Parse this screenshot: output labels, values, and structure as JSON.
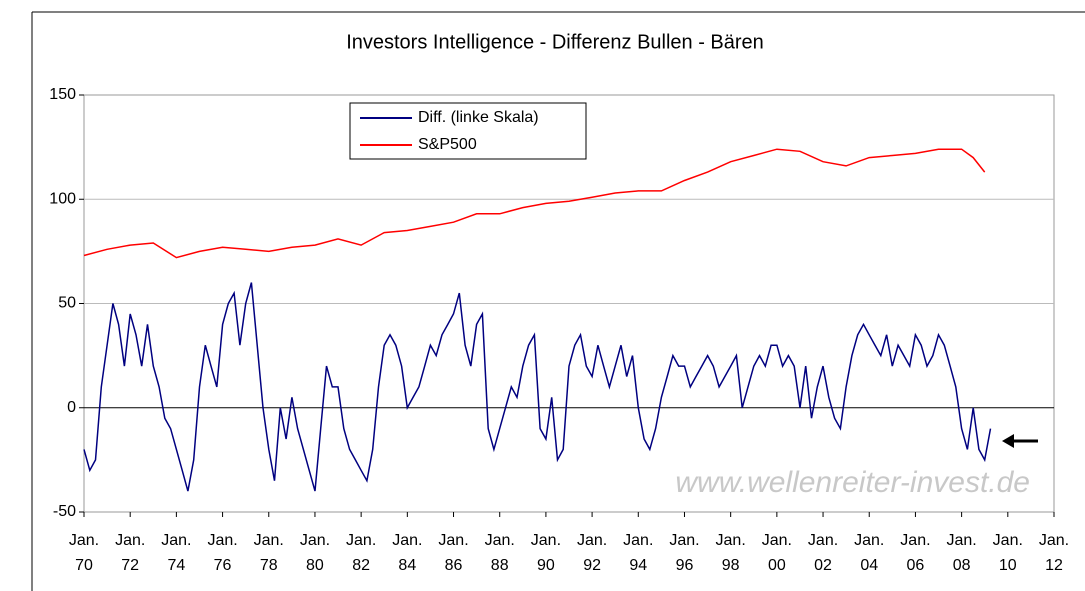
{
  "chart_data": {
    "type": "line",
    "title": "Investors Intelligence - Differenz Bullen - Bären",
    "watermark": "www.wellenreiter-invest.de",
    "xlim": [
      1970,
      2012
    ],
    "xticks": [
      {
        "value": 1970,
        "label": "Jan. 70"
      },
      {
        "value": 1972,
        "label": "Jan. 72"
      },
      {
        "value": 1974,
        "label": "Jan. 74"
      },
      {
        "value": 1976,
        "label": "Jan. 76"
      },
      {
        "value": 1978,
        "label": "Jan. 78"
      },
      {
        "value": 1980,
        "label": "Jan. 80"
      },
      {
        "value": 1982,
        "label": "Jan. 82"
      },
      {
        "value": 1984,
        "label": "Jan. 84"
      },
      {
        "value": 1986,
        "label": "Jan. 86"
      },
      {
        "value": 1988,
        "label": "Jan. 88"
      },
      {
        "value": 1990,
        "label": "Jan. 90"
      },
      {
        "value": 1992,
        "label": "Jan. 92"
      },
      {
        "value": 1994,
        "label": "Jan. 94"
      },
      {
        "value": 1996,
        "label": "Jan. 96"
      },
      {
        "value": 1998,
        "label": "Jan. 98"
      },
      {
        "value": 2000,
        "label": "Jan. 00"
      },
      {
        "value": 2002,
        "label": "Jan. 02"
      },
      {
        "value": 2004,
        "label": "Jan. 04"
      },
      {
        "value": 2006,
        "label": "Jan. 06"
      },
      {
        "value": 2008,
        "label": "Jan. 08"
      },
      {
        "value": 2010,
        "label": "Jan. 10"
      },
      {
        "value": 2012,
        "label": "Jan. 12"
      }
    ],
    "ylim": [
      -50,
      150
    ],
    "yticks": [
      -50,
      0,
      50,
      100,
      150
    ],
    "grid": true,
    "series": [
      {
        "name": "Diff. (linke Skala)",
        "color": "#000080",
        "x": [
          1970,
          1970.25,
          1970.5,
          1970.75,
          1971,
          1971.25,
          1971.5,
          1971.75,
          1972,
          1972.25,
          1972.5,
          1972.75,
          1973,
          1973.25,
          1973.5,
          1973.75,
          1974,
          1974.25,
          1974.5,
          1974.75,
          1975,
          1975.25,
          1975.5,
          1975.75,
          1976,
          1976.25,
          1976.5,
          1976.75,
          1977,
          1977.25,
          1977.5,
          1977.75,
          1978,
          1978.25,
          1978.5,
          1978.75,
          1979,
          1979.25,
          1979.5,
          1979.75,
          1980,
          1980.25,
          1980.5,
          1980.75,
          1981,
          1981.25,
          1981.5,
          1981.75,
          1982,
          1982.25,
          1982.5,
          1982.75,
          1983,
          1983.25,
          1983.5,
          1983.75,
          1984,
          1984.25,
          1984.5,
          1984.75,
          1985,
          1985.25,
          1985.5,
          1985.75,
          1986,
          1986.25,
          1986.5,
          1986.75,
          1987,
          1987.25,
          1987.5,
          1987.75,
          1988,
          1988.25,
          1988.5,
          1988.75,
          1989,
          1989.25,
          1989.5,
          1989.75,
          1990,
          1990.25,
          1990.5,
          1990.75,
          1991,
          1991.25,
          1991.5,
          1991.75,
          1992,
          1992.25,
          1992.5,
          1992.75,
          1993,
          1993.25,
          1993.5,
          1993.75,
          1994,
          1994.25,
          1994.5,
          1994.75,
          1995,
          1995.25,
          1995.5,
          1995.75,
          1996,
          1996.25,
          1996.5,
          1996.75,
          1997,
          1997.25,
          1997.5,
          1997.75,
          1998,
          1998.25,
          1998.5,
          1998.75,
          1999,
          1999.25,
          1999.5,
          1999.75,
          2000,
          2000.25,
          2000.5,
          2000.75,
          2001,
          2001.25,
          2001.5,
          2001.75,
          2002,
          2002.25,
          2002.5,
          2002.75,
          2003,
          2003.25,
          2003.5,
          2003.75,
          2004,
          2004.25,
          2004.5,
          2004.75,
          2005,
          2005.25,
          2005.5,
          2005.75,
          2006,
          2006.25,
          2006.5,
          2006.75,
          2007,
          2007.25,
          2007.5,
          2007.75,
          2008,
          2008.25,
          2008.5,
          2008.75,
          2009,
          2009.25
        ],
        "values": [
          -20,
          -30,
          -25,
          10,
          30,
          50,
          40,
          20,
          45,
          35,
          20,
          40,
          20,
          10,
          -5,
          -10,
          -20,
          -30,
          -40,
          -25,
          10,
          30,
          20,
          10,
          40,
          50,
          55,
          30,
          50,
          60,
          30,
          0,
          -20,
          -35,
          0,
          -15,
          5,
          -10,
          -20,
          -30,
          -40,
          -10,
          20,
          10,
          10,
          -10,
          -20,
          -25,
          -30,
          -35,
          -20,
          10,
          30,
          35,
          30,
          20,
          0,
          5,
          10,
          20,
          30,
          25,
          35,
          40,
          45,
          55,
          30,
          20,
          40,
          45,
          -10,
          -20,
          -10,
          0,
          10,
          5,
          20,
          30,
          35,
          -10,
          -15,
          5,
          -25,
          -20,
          20,
          30,
          35,
          20,
          15,
          30,
          20,
          10,
          20,
          30,
          15,
          25,
          0,
          -15,
          -20,
          -10,
          5,
          15,
          25,
          20,
          20,
          10,
          15,
          20,
          25,
          20,
          10,
          15,
          20,
          25,
          0,
          10,
          20,
          25,
          20,
          30,
          30,
          20,
          25,
          20,
          0,
          20,
          -5,
          10,
          20,
          5,
          -5,
          -10,
          10,
          25,
          35,
          40,
          35,
          30,
          25,
          35,
          20,
          30,
          25,
          20,
          35,
          30,
          20,
          25,
          35,
          30,
          20,
          10,
          -10,
          -20,
          0,
          -20,
          -25,
          -10
        ]
      },
      {
        "name": "S&P500",
        "color": "#ff0000",
        "x": [
          1970,
          1971,
          1972,
          1973,
          1974,
          1975,
          1976,
          1977,
          1978,
          1979,
          1980,
          1981,
          1982,
          1983,
          1984,
          1985,
          1986,
          1987,
          1988,
          1989,
          1990,
          1991,
          1992,
          1993,
          1994,
          1995,
          1996,
          1997,
          1998,
          1999,
          2000,
          2001,
          2002,
          2003,
          2004,
          2005,
          2006,
          2007,
          2008,
          2008.5,
          2009
        ],
        "values": [
          73,
          76,
          78,
          79,
          72,
          75,
          77,
          76,
          75,
          77,
          78,
          81,
          78,
          84,
          85,
          87,
          89,
          93,
          93,
          96,
          98,
          99,
          101,
          103,
          104,
          104,
          109,
          113,
          118,
          121,
          124,
          123,
          118,
          116,
          120,
          121,
          122,
          124,
          124,
          120,
          113
        ]
      }
    ]
  }
}
